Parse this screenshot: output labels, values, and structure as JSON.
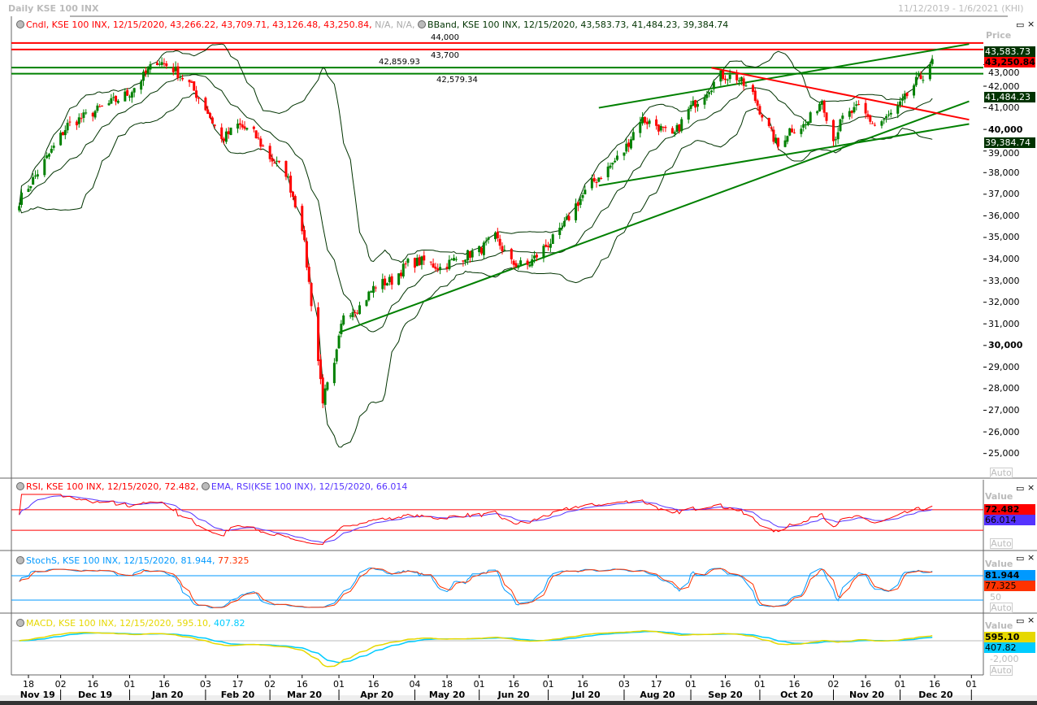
{
  "window": {
    "title": "Daily KSE 100 INX",
    "range": "11/12/2019 - 1/6/2021 (KHI)"
  },
  "price_panel": {
    "legend_cndl": "Cndl, KSE 100 INX, 12/15/2020, 43,266.22, 43,709.71, 43,126.48, 43,250.84,",
    "legend_na": "N/A, N/A,",
    "legend_bband": "BBand, KSE 100 INX, 12/15/2020, 43,583.73, 41,484.23, 39,384.74",
    "axis_title": "Price",
    "auto": "Auto",
    "badges": [
      {
        "text": "43,583.73",
        "price": 43583.73,
        "bg": "#003300",
        "fg": "#ffffff"
      },
      {
        "text": "43,250.84",
        "price": 43250.84,
        "bg": "#ff0000",
        "fg": "#000000"
      },
      {
        "text": "41,484.23",
        "price": 41484.23,
        "bg": "#003300",
        "fg": "#ffffff"
      },
      {
        "text": "39,384.74",
        "price": 39384.74,
        "bg": "#003300",
        "fg": "#ffffff"
      }
    ],
    "ticks": [
      "43,000",
      "42,000",
      "41,000",
      "40,000",
      "39,000",
      "38,000",
      "37,000",
      "36,000",
      "35,000",
      "34,000",
      "33,000",
      "32,000",
      "31,000",
      "30,000",
      "29,000",
      "28,000",
      "27,000",
      "26,000",
      "25,000"
    ],
    "hlines": [
      {
        "price": 44000,
        "label": "44,000",
        "color": "#ff0000"
      },
      {
        "price": 43700,
        "label": "43,700",
        "color": "#ff0000"
      },
      {
        "price": 42859.93,
        "label": "42,859.93",
        "color": "#008000"
      },
      {
        "price": 42579.34,
        "label": "42,579.34",
        "color": "#008000"
      }
    ],
    "trendlines": [
      {
        "from": [
          "2020-04-01",
          30600
        ],
        "to": [
          "2020-12-31",
          41300
        ],
        "color": "#008000"
      },
      {
        "from": [
          "2020-07-23",
          41000
        ],
        "to": [
          "2020-12-31",
          43950
        ],
        "color": "#008000"
      },
      {
        "from": [
          "2020-07-23",
          37400
        ],
        "to": [
          "2020-12-31",
          40250
        ],
        "color": "#008000"
      },
      {
        "from": [
          "2020-09-10",
          42850
        ],
        "to": [
          "2020-12-31",
          40450
        ],
        "color": "#ff0000"
      }
    ]
  },
  "rsi_panel": {
    "legend_rsi": "RSI, KSE 100 INX, 12/15/2020, 72.482,",
    "legend_ema": "EMA, RSI(KSE 100 INX), 12/15/2020, 66.014",
    "axis_title": "Value",
    "auto": "Auto",
    "badge1": "72.482",
    "badge2": "66.014",
    "levels": [
      70,
      30
    ],
    "colors": {
      "rsi": "#ff0000",
      "ema": "#5533ff"
    }
  },
  "stoch_panel": {
    "legend_k": "StochS, KSE 100 INX, 12/15/2020, 81.944,",
    "legend_d": "77.325",
    "axis_title": "Value",
    "auto": "Auto",
    "badge1": "81.944",
    "badge2": "77.325",
    "tick": "50",
    "levels": [
      80,
      20
    ],
    "colors": {
      "k": "#0099ff",
      "d": "#ff3300"
    }
  },
  "macd_panel": {
    "legend_macd": "MACD, KSE 100 INX, 12/15/2020, 595.10,",
    "legend_signal": "407.82",
    "axis_title": "Value",
    "auto": "Auto",
    "badge1": "595.10",
    "badge2": "407.82",
    "tick": "-2,000",
    "colors": {
      "macd": "#e6d800",
      "signal": "#00ccff"
    }
  },
  "chart_data": {
    "type": "candlestick",
    "symbol": "KSE 100 INX",
    "close_keypoints": [
      [
        "2019-11-14",
        36700
      ],
      [
        "2019-11-25",
        38500
      ],
      [
        "2019-12-05",
        40200
      ],
      [
        "2019-12-20",
        41000
      ],
      [
        "2020-01-01",
        41700
      ],
      [
        "2020-01-13",
        43200
      ],
      [
        "2020-01-20",
        42800
      ],
      [
        "2020-01-27",
        42100
      ],
      [
        "2020-02-03",
        41000
      ],
      [
        "2020-02-10",
        39500
      ],
      [
        "2020-02-17",
        40200
      ],
      [
        "2020-02-24",
        39800
      ],
      [
        "2020-03-02",
        38700
      ],
      [
        "2020-03-09",
        38000
      ],
      [
        "2020-03-16",
        35500
      ],
      [
        "2020-03-20",
        32000
      ],
      [
        "2020-03-25",
        27500
      ],
      [
        "2020-03-30",
        29000
      ],
      [
        "2020-04-03",
        31500
      ],
      [
        "2020-04-10",
        31800
      ],
      [
        "2020-04-17",
        32800
      ],
      [
        "2020-04-24",
        33000
      ],
      [
        "2020-05-01",
        33800
      ],
      [
        "2020-05-08",
        33900
      ],
      [
        "2020-05-15",
        33600
      ],
      [
        "2020-05-22",
        34000
      ],
      [
        "2020-06-01",
        34400
      ],
      [
        "2020-06-08",
        35000
      ],
      [
        "2020-06-15",
        33800
      ],
      [
        "2020-06-22",
        33700
      ],
      [
        "2020-06-29",
        34500
      ],
      [
        "2020-07-06",
        35200
      ],
      [
        "2020-07-13",
        36500
      ],
      [
        "2020-07-20",
        37500
      ],
      [
        "2020-07-27",
        38200
      ],
      [
        "2020-08-03",
        39000
      ],
      [
        "2020-08-10",
        40500
      ],
      [
        "2020-08-17",
        40200
      ],
      [
        "2020-08-24",
        39600
      ],
      [
        "2020-08-31",
        40900
      ],
      [
        "2020-09-07",
        41700
      ],
      [
        "2020-09-14",
        42500
      ],
      [
        "2020-09-21",
        42400
      ],
      [
        "2020-09-28",
        41600
      ],
      [
        "2020-10-05",
        40000
      ],
      [
        "2020-10-09",
        39200
      ],
      [
        "2020-10-14",
        40000
      ],
      [
        "2020-10-21",
        40200
      ],
      [
        "2020-10-28",
        41400
      ],
      [
        "2020-11-02",
        39500
      ],
      [
        "2020-11-06",
        40500
      ],
      [
        "2020-11-13",
        41000
      ],
      [
        "2020-11-20",
        40200
      ],
      [
        "2020-11-25",
        40500
      ],
      [
        "2020-12-01",
        41100
      ],
      [
        "2020-12-08",
        42200
      ],
      [
        "2020-12-11",
        42500
      ],
      [
        "2020-12-14",
        43100
      ],
      [
        "2020-12-15",
        43250.84
      ]
    ],
    "x_ticks": [
      [
        "2019-11-18",
        "18"
      ],
      [
        "2019-12-02",
        "02"
      ],
      [
        "2019-12-16",
        "16"
      ],
      [
        "2020-01-01",
        "01"
      ],
      [
        "2020-01-16",
        "16"
      ],
      [
        "2020-02-03",
        "03"
      ],
      [
        "2020-02-17",
        "17"
      ],
      [
        "2020-03-02",
        "02"
      ],
      [
        "2020-03-16",
        "16"
      ],
      [
        "2020-04-01",
        "01"
      ],
      [
        "2020-04-16",
        "16"
      ],
      [
        "2020-05-04",
        "04"
      ],
      [
        "2020-05-18",
        "18"
      ],
      [
        "2020-06-01",
        "01"
      ],
      [
        "2020-06-16",
        "16"
      ],
      [
        "2020-07-01",
        "01"
      ],
      [
        "2020-07-16",
        "16"
      ],
      [
        "2020-08-03",
        "03"
      ],
      [
        "2020-08-17",
        "17"
      ],
      [
        "2020-09-01",
        "01"
      ],
      [
        "2020-09-16",
        "16"
      ],
      [
        "2020-10-01",
        "01"
      ],
      [
        "2020-10-16",
        "16"
      ],
      [
        "2020-11-02",
        "02"
      ],
      [
        "2020-11-16",
        "16"
      ],
      [
        "2020-12-01",
        "01"
      ],
      [
        "2020-12-16",
        "16"
      ],
      [
        "2021-01-01",
        "01"
      ]
    ],
    "months": [
      "Nov 19",
      "Dec 19",
      "Jan 20",
      "Feb 20",
      "Mar 20",
      "Apr 20",
      "May 20",
      "Jun 20",
      "Jul 20",
      "Aug 20",
      "Sep 20",
      "Oct 20",
      "Nov 20",
      "Dec 20"
    ],
    "colors": {
      "up": "#008000",
      "down": "#ff0000",
      "bband": "#003300"
    }
  }
}
